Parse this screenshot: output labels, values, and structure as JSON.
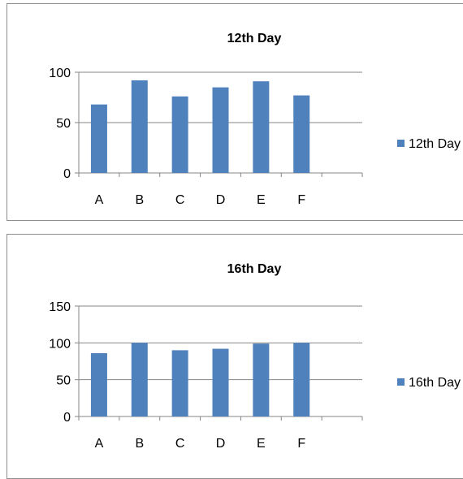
{
  "chart_data": [
    {
      "type": "bar",
      "title": "12th Day",
      "categories": [
        "A",
        "B",
        "C",
        "D",
        "E",
        "F",
        ""
      ],
      "series": [
        {
          "name": "12th Day",
          "values": [
            68,
            92,
            76,
            85,
            91,
            77,
            null
          ]
        }
      ],
      "yticks": [
        "0",
        "50",
        "100"
      ],
      "ylim": [
        0,
        100
      ],
      "grid": true,
      "legend": "right",
      "colors": {
        "bar": "#4f81bd",
        "axis": "#868686",
        "grid": "#868686"
      }
    },
    {
      "type": "bar",
      "title": "16th Day",
      "categories": [
        "A",
        "B",
        "C",
        "D",
        "E",
        "F",
        ""
      ],
      "series": [
        {
          "name": "16th Day",
          "values": [
            86,
            100,
            90,
            92,
            99,
            100,
            null
          ]
        }
      ],
      "yticks": [
        "0",
        "50",
        "100",
        "150"
      ],
      "ylim": [
        0,
        150
      ],
      "grid": true,
      "legend": "right",
      "colors": {
        "bar": "#4f81bd",
        "axis": "#868686",
        "grid": "#868686"
      }
    }
  ]
}
